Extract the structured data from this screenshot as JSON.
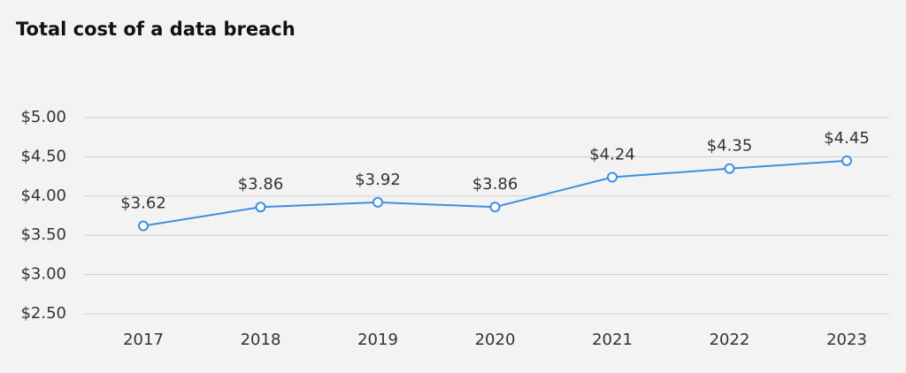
{
  "chart_data": {
    "type": "line",
    "title": "Total cost of a data breach",
    "categories": [
      "2017",
      "2018",
      "2019",
      "2020",
      "2021",
      "2022",
      "2023"
    ],
    "values": [
      3.62,
      3.86,
      3.92,
      3.86,
      4.24,
      4.35,
      4.45
    ],
    "value_labels": [
      "$3.62",
      "$3.86",
      "$3.92",
      "$3.86",
      "$4.24",
      "$4.35",
      "$4.45"
    ],
    "color": "#3d8fe0",
    "ylim": [
      2.5,
      5
    ],
    "yticks": [
      {
        "value": 2.5,
        "label": "$2.50"
      },
      {
        "value": 3,
        "label": "$3.00"
      },
      {
        "value": 3.5,
        "label": "$3.50"
      },
      {
        "value": 4,
        "label": "$4.00"
      },
      {
        "value": 4.5,
        "label": "$4.50"
      },
      {
        "value": 5,
        "label": "$5.00"
      }
    ],
    "grid": true
  }
}
